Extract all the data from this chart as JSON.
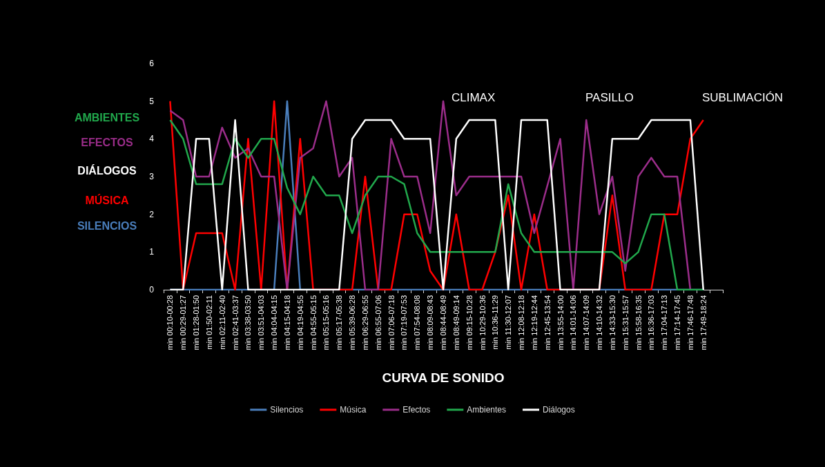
{
  "chart_data": {
    "type": "line",
    "xlabel": "CURVA DE SONIDO",
    "categories": [
      "min 00:10-00:28",
      "min 00:29-01:27",
      "min 01:28-01:50",
      "min 01:50-02:11",
      "min 02:11-02:40",
      "min 02:41-03:37",
      "min 03:38-03:50",
      "min 03:51-04:03",
      "min 04:04-04:15",
      "min 04:15-04:18",
      "min 04:19-04:55",
      "min 04:55-05:15",
      "min 05:15-05:16",
      "min 05:17-05:38",
      "min 05:39-06:28",
      "min 06:29-06:55",
      "min 06:55-07:06",
      "min 07:06-07:18",
      "min 07:19-07:53",
      "min 07:54-08:08",
      "min 08:09-08:43",
      "min 08:44-08:49",
      "min 08:49-09:14",
      "min 09:15-10:28",
      "min 10:29-10:36",
      "min 10:36-11:29",
      "min 11:30-12:07",
      "min 12:08-12:18",
      "min 12:19-12:44",
      "min 12:45-13:54",
      "min 13:55-14:00",
      "min 14:01-14:06",
      "min 14:07-14:09",
      "min 14:10-14:32",
      "min 14:33-15:30",
      "min 15:31-15:57",
      "min 15:58-16:35",
      "min 16:36-17:03",
      "min 17:04-17:13",
      "min 17:14-17:45",
      "min 17:46-17:48",
      "min 17:49-18:24",
      null
    ],
    "series": [
      {
        "name": "Silencios",
        "color": "#4a7ebb",
        "values": [
          0,
          0,
          0,
          0,
          0,
          0,
          0,
          0,
          0,
          5,
          0,
          0,
          0,
          0,
          0,
          0,
          0,
          0,
          0,
          0,
          0,
          0,
          0,
          0,
          0,
          0,
          0,
          0,
          0,
          0,
          0,
          0,
          0,
          0,
          0,
          0,
          0,
          0,
          0,
          0,
          0,
          0,
          null
        ]
      },
      {
        "name": "Música",
        "color": "#ff0000",
        "values": [
          5,
          0,
          1.5,
          1.5,
          1.5,
          0,
          4,
          0,
          5,
          0,
          4,
          0,
          0,
          0,
          0,
          3,
          0,
          0,
          2,
          2,
          0.5,
          0,
          2,
          0,
          0,
          1,
          2.5,
          0,
          2,
          0,
          0,
          0,
          0,
          0,
          2.5,
          0,
          0,
          0,
          2,
          2,
          4,
          4.5,
          null
        ]
      },
      {
        "name": "Efectos",
        "color": "#9b2d8a",
        "values": [
          4.75,
          4.5,
          3,
          3,
          4.3,
          3.5,
          3.75,
          3,
          3,
          0,
          3.5,
          3.75,
          5,
          3,
          3.5,
          0,
          0,
          4,
          3,
          3,
          1.5,
          5,
          2.5,
          3,
          3,
          3,
          3,
          3,
          1.5,
          2.75,
          4,
          0,
          4.5,
          2,
          3,
          0.5,
          3,
          3.5,
          3,
          3,
          0,
          null,
          null
        ]
      },
      {
        "name": "Ambientes",
        "color": "#21a84c",
        "values": [
          4.5,
          4,
          2.8,
          2.8,
          2.8,
          4,
          3.5,
          4,
          4,
          2.7,
          2,
          3,
          2.5,
          2.5,
          1.5,
          2.5,
          3,
          3,
          2.8,
          1.5,
          1,
          1,
          1,
          1,
          1,
          1,
          2.8,
          1.5,
          1,
          1,
          1,
          1,
          1,
          1,
          1,
          0.7,
          1,
          2,
          2,
          0,
          0,
          0,
          null
        ]
      },
      {
        "name": "Diálogos",
        "color": "#ffffff",
        "values": [
          0,
          0,
          4,
          4,
          0,
          4.5,
          0,
          0,
          0,
          0,
          0,
          0,
          0,
          0,
          4,
          4.5,
          4.5,
          4.5,
          4,
          4,
          4,
          0,
          4,
          4.5,
          4.5,
          4.5,
          0,
          4.5,
          4.5,
          4.5,
          0,
          0,
          0,
          0,
          4,
          4,
          4,
          4.5,
          4.5,
          4.5,
          4.5,
          0,
          null
        ]
      }
    ],
    "ylim": [
      0,
      6
    ],
    "yticks": [
      0,
      1,
      2,
      3,
      4,
      5,
      6
    ],
    "grid": false,
    "legend": "bottom",
    "marker": "none",
    "line_style": "solid",
    "annotations": [
      "CLIMAX",
      "PASILLO",
      "SUBLIMACIÓN",
      "AMBIENTES",
      "EFECTOS",
      "DIÁLOGOS",
      "MÚSICA",
      "SILENCIOS"
    ]
  }
}
